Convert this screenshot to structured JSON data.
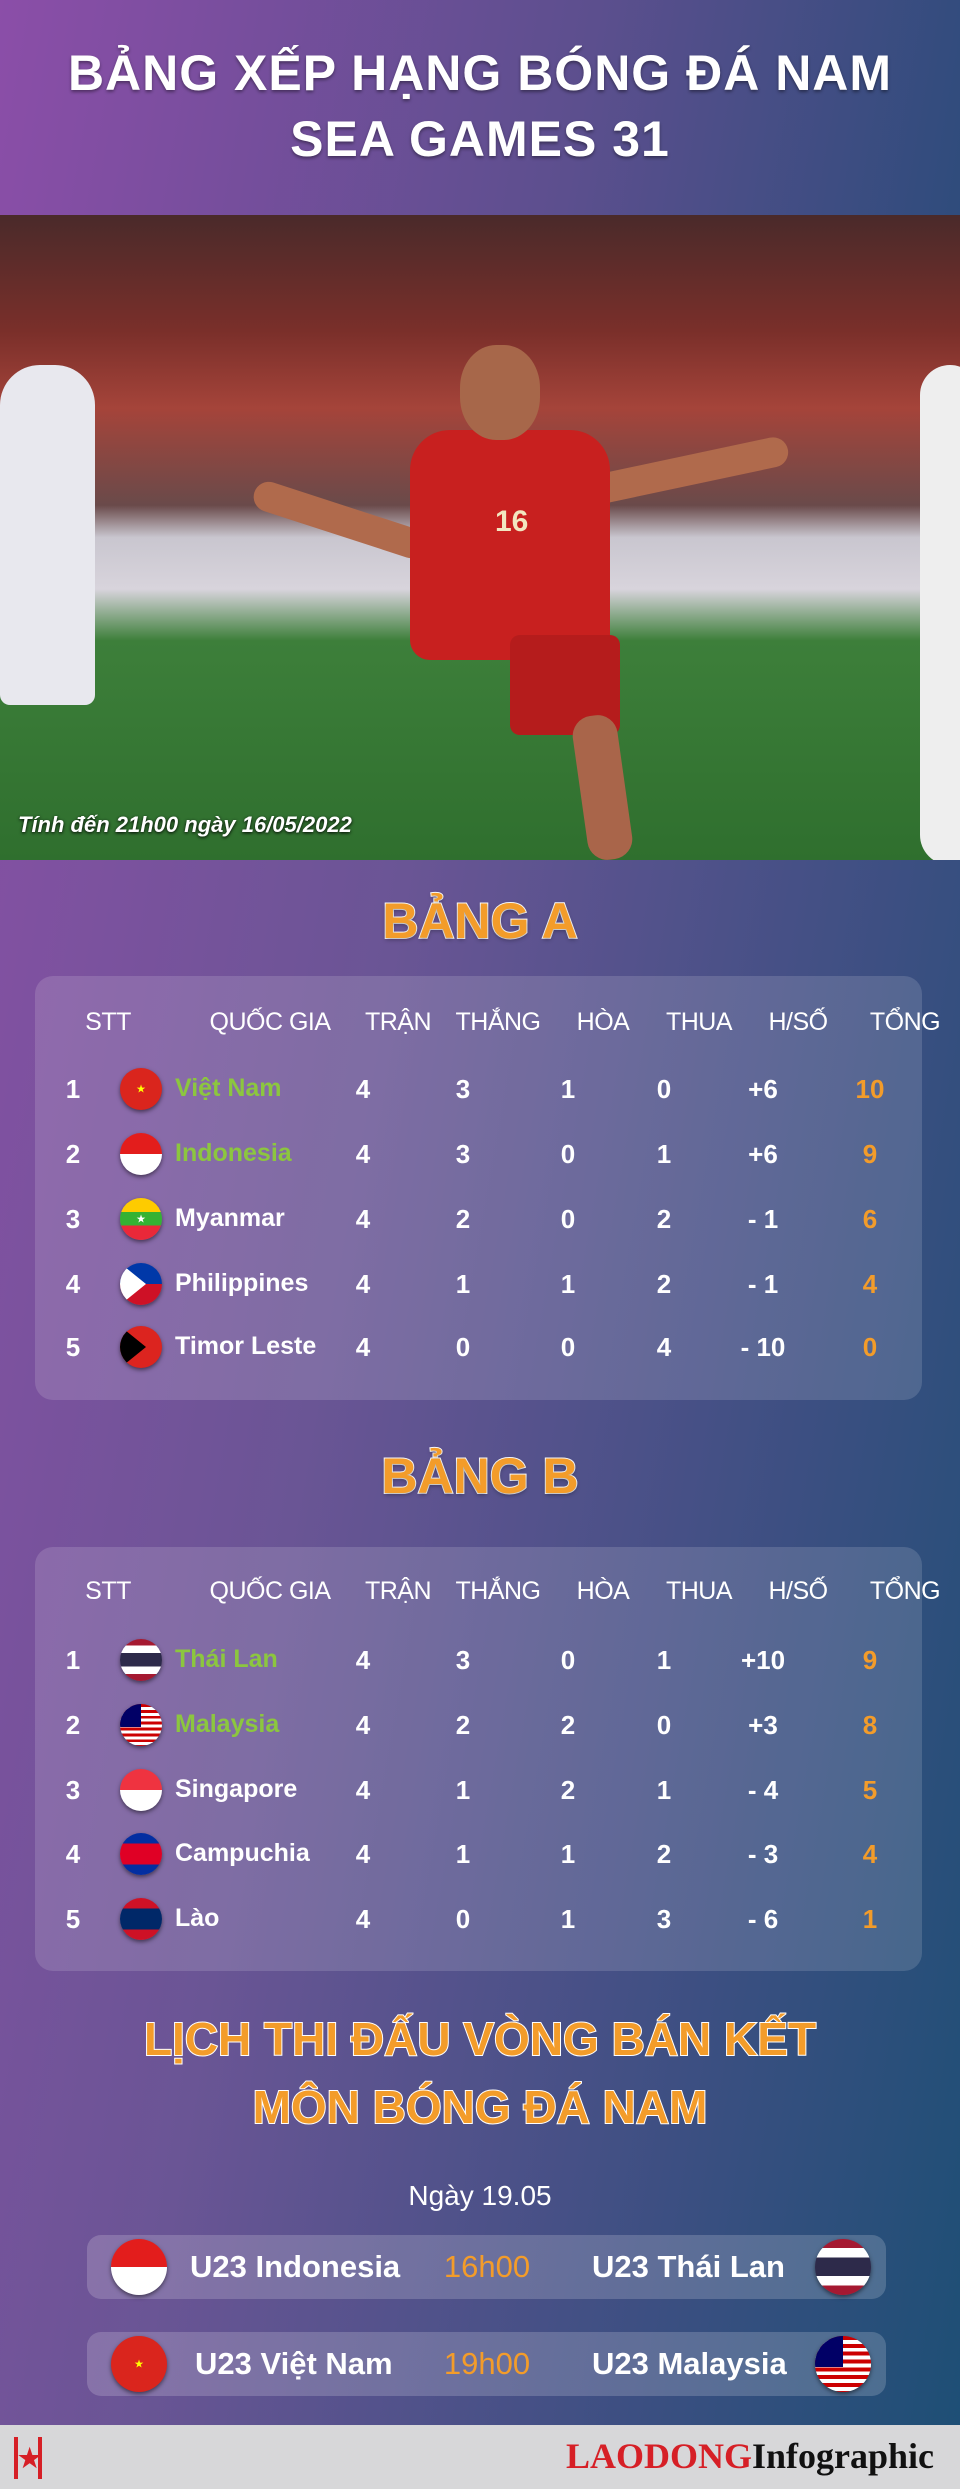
{
  "header": {
    "title_line1": "BẢNG XẾP HẠNG BÓNG ĐÁ NAM",
    "title_line2": "SEA GAMES 31"
  },
  "photo": {
    "caption": "Tính đến 21h00 ngày 16/05/2022",
    "jersey_number": "16"
  },
  "columns": [
    "STT",
    "QUỐC GIA",
    "TRẬN",
    "THẮNG",
    "HÒA",
    "THUA",
    "H/SỐ",
    "TỔNG"
  ],
  "groups": [
    {
      "title": "BẢNG A",
      "rows": [
        {
          "stt": "1",
          "team": "Việt Nam",
          "flag": "vietnam",
          "qualified": true,
          "played": "4",
          "won": "3",
          "drawn": "1",
          "lost": "0",
          "gd": "+6",
          "pts": "10"
        },
        {
          "stt": "2",
          "team": "Indonesia",
          "flag": "indonesia",
          "qualified": true,
          "played": "4",
          "won": "3",
          "drawn": "0",
          "lost": "1",
          "gd": "+6",
          "pts": "9"
        },
        {
          "stt": "3",
          "team": "Myanmar",
          "flag": "myanmar",
          "qualified": false,
          "played": "4",
          "won": "2",
          "drawn": "0",
          "lost": "2",
          "gd": "- 1",
          "pts": "6"
        },
        {
          "stt": "4",
          "team": "Philippines",
          "flag": "philippines",
          "qualified": false,
          "played": "4",
          "won": "1",
          "drawn": "1",
          "lost": "2",
          "gd": "- 1",
          "pts": "4"
        },
        {
          "stt": "5",
          "team": "Timor Leste",
          "flag": "timor-leste",
          "qualified": false,
          "played": "4",
          "won": "0",
          "drawn": "0",
          "lost": "4",
          "gd": "- 10",
          "pts": "0"
        }
      ]
    },
    {
      "title": "BẢNG B",
      "rows": [
        {
          "stt": "1",
          "team": "Thái Lan",
          "flag": "thailand",
          "qualified": true,
          "played": "4",
          "won": "3",
          "drawn": "0",
          "lost": "1",
          "gd": "+10",
          "pts": "9"
        },
        {
          "stt": "2",
          "team": "Malaysia",
          "flag": "malaysia",
          "qualified": true,
          "played": "4",
          "won": "2",
          "drawn": "2",
          "lost": "0",
          "gd": "+3",
          "pts": "8"
        },
        {
          "stt": "3",
          "team": "Singapore",
          "flag": "singapore",
          "qualified": false,
          "played": "4",
          "won": "1",
          "drawn": "2",
          "lost": "1",
          "gd": "- 4",
          "pts": "5"
        },
        {
          "stt": "4",
          "team": "Campuchia",
          "flag": "cambodia",
          "qualified": false,
          "played": "4",
          "won": "1",
          "drawn": "1",
          "lost": "2",
          "gd": "- 3",
          "pts": "4"
        },
        {
          "stt": "5",
          "team": "Lào",
          "flag": "laos",
          "qualified": false,
          "played": "4",
          "won": "0",
          "drawn": "1",
          "lost": "3",
          "gd": "- 6",
          "pts": "1"
        }
      ]
    }
  ],
  "schedule": {
    "title_line1": "LỊCH THI ĐẤU VÒNG BÁN KẾT",
    "title_line2": "MÔN BÓNG ĐÁ NAM",
    "date": "Ngày 19.05",
    "matches": [
      {
        "home": "U23 Indonesia",
        "home_flag": "indonesia",
        "time": "16h00",
        "away": "U23 Thái Lan",
        "away_flag": "thailand"
      },
      {
        "home": "U23 Việt Nam",
        "home_flag": "vietnam",
        "time": "19h00",
        "away": "U23 Malaysia",
        "away_flag": "malaysia"
      }
    ]
  },
  "footer": {
    "brand": "LAODONG",
    "brand_suffix": "Infographic"
  },
  "colors": {
    "qualified": "#8cc63f",
    "points": "#f39c2a",
    "title": "#f39c2a"
  }
}
